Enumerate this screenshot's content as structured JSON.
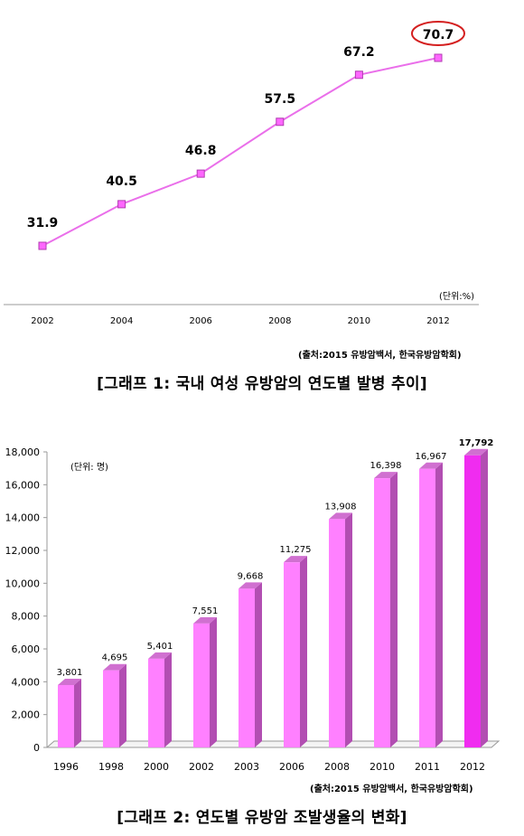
{
  "colors": {
    "line": "#ea6fea",
    "marker": "#ff66ff",
    "marker_border": "#b03cb0",
    "highlight": "#d41f1f",
    "bar": "#ff80ff",
    "bar_side": "#b24eb2",
    "bar_last": "#f02cf0",
    "axis": "#999999"
  },
  "chart_data": [
    {
      "type": "line",
      "x": [
        "2002",
        "2004",
        "2006",
        "2008",
        "2010",
        "2012"
      ],
      "series": [
        {
          "values": [
            31.9,
            40.5,
            46.8,
            57.5,
            67.2,
            70.7
          ]
        }
      ],
      "data_labels": [
        "31.9",
        "40.5",
        "46.8",
        "57.5",
        "67.2",
        "70.7"
      ],
      "highlighted_label": "70.7",
      "unit_label": "(단위:%)",
      "ylim": [
        20,
        80
      ],
      "grid": false
    },
    {
      "type": "bar",
      "categories": [
        "1996",
        "1998",
        "2000",
        "2002",
        "2003",
        "2006",
        "2008",
        "2010",
        "2011",
        "2012"
      ],
      "series": [
        {
          "values": [
            3801,
            4695,
            5401,
            7551,
            9668,
            11275,
            13908,
            16398,
            16967,
            17792
          ]
        }
      ],
      "data_labels": [
        "3,801",
        "4,695",
        "5,401",
        "7,551",
        "9,668",
        "11,275",
        "13,908",
        "16,398",
        "16,967",
        "17,792"
      ],
      "y_ticks": [
        "0",
        "2,000",
        "4,000",
        "6,000",
        "8,000",
        "10,000",
        "12,000",
        "14,000",
        "16,000",
        "18,000"
      ],
      "ylim": [
        0,
        18000
      ],
      "unit_label": "(단위: 명)",
      "grid": false
    }
  ],
  "captions": {
    "chart1_source": "(출처:2015 유방암백서, 한국유방암학회)",
    "chart1_caption": "[그래프 1: 국내 여성 유방암의 연도별 발병 추이]",
    "chart2_source": "(출처:2015 유방암백서, 한국유방암학회)",
    "chart2_caption": "[그래프 2: 연도별 유방암 조발생율의 변화]"
  }
}
